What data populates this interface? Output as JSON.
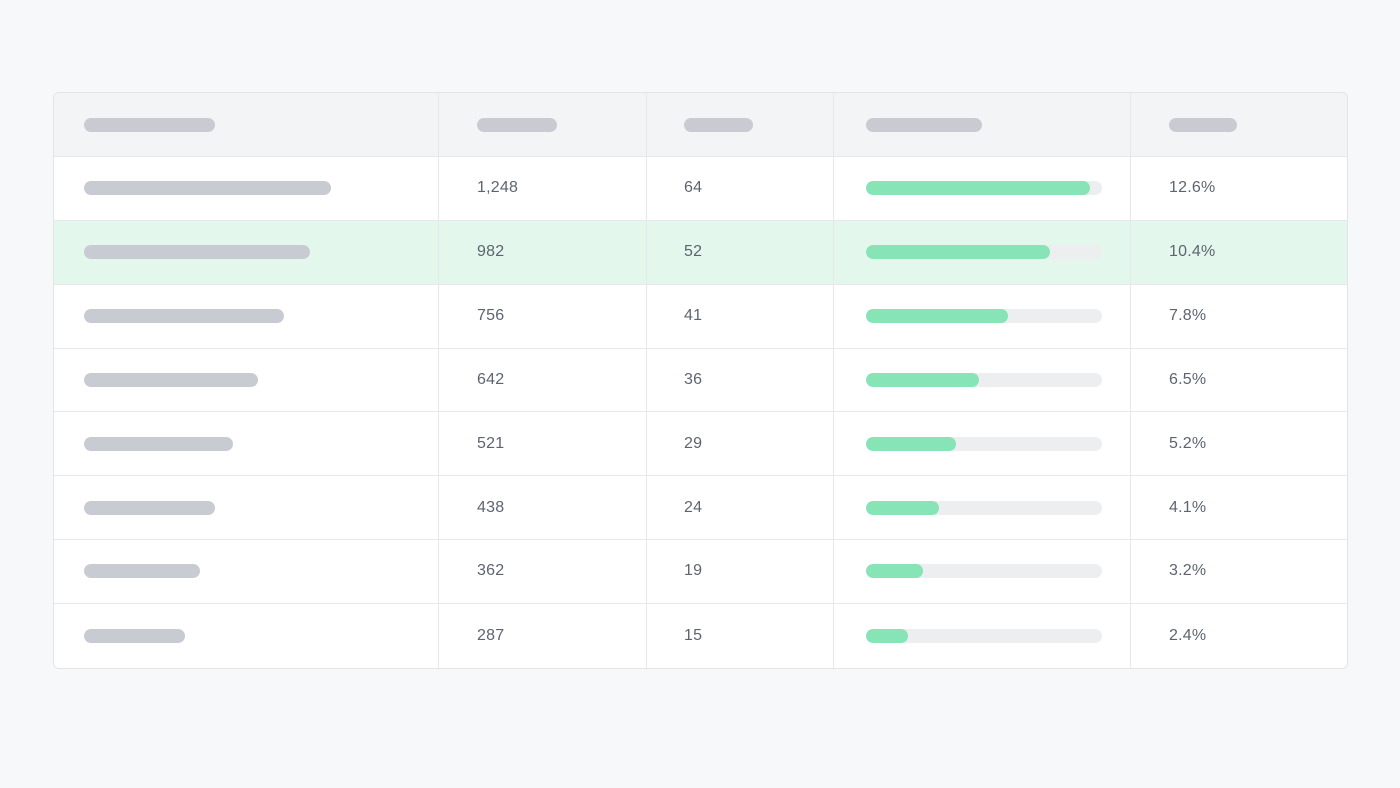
{
  "colors": {
    "page_background": "#f7f8f9",
    "header_background": "#f3f4f6",
    "highlight_row": "#e3f7ec",
    "progress_fill": "#86e4b6",
    "progress_track": "#eceef0",
    "skeleton": "#c9cbd2",
    "text": "#5d6470"
  },
  "table": {
    "header": [
      {
        "kind": "placeholder-skeleton"
      },
      {
        "kind": "placeholder-skeleton"
      },
      {
        "kind": "placeholder-skeleton"
      },
      {
        "kind": "placeholder-skeleton"
      },
      {
        "kind": "placeholder-skeleton"
      }
    ],
    "highlighted_row_index": 1,
    "rows": [
      {
        "col2": "1,248",
        "col3": "64",
        "progress": 0.95,
        "col5": "12.6%"
      },
      {
        "col2": "982",
        "col3": "52",
        "progress": 0.78,
        "col5": "10.4%"
      },
      {
        "col2": "756",
        "col3": "41",
        "progress": 0.6,
        "col5": "7.8%"
      },
      {
        "col2": "642",
        "col3": "36",
        "progress": 0.48,
        "col5": "6.5%"
      },
      {
        "col2": "521",
        "col3": "29",
        "progress": 0.38,
        "col5": "5.2%"
      },
      {
        "col2": "438",
        "col3": "24",
        "progress": 0.31,
        "col5": "4.1%"
      },
      {
        "col2": "362",
        "col3": "19",
        "progress": 0.24,
        "col5": "3.2%"
      },
      {
        "col2": "287",
        "col3": "15",
        "progress": 0.18,
        "col5": "2.4%"
      }
    ]
  }
}
